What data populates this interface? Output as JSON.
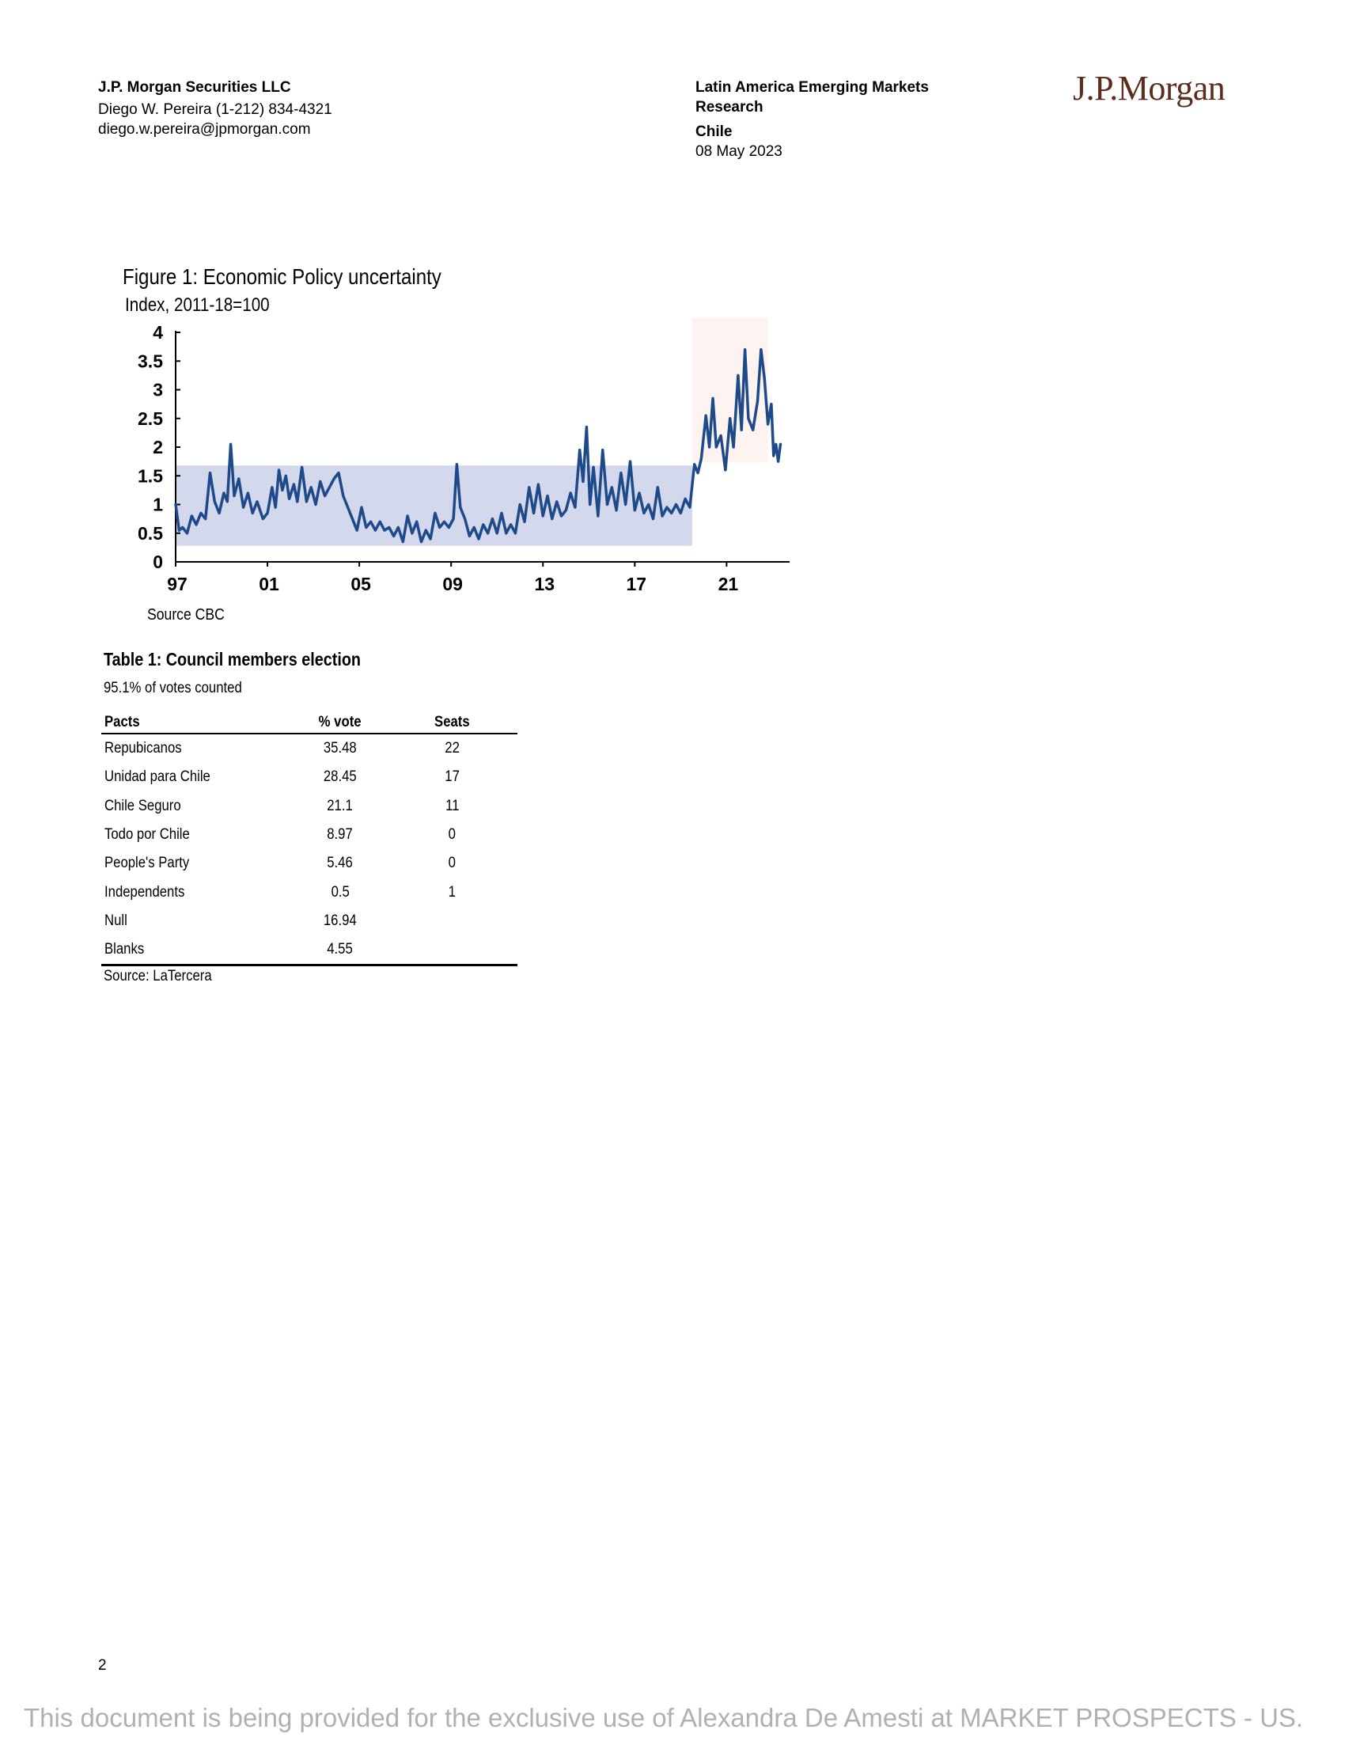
{
  "header": {
    "company": "J.P. Morgan Securities LLC",
    "analyst": "Diego W. Pereira (1-212) 834-4321",
    "email": "diego.w.pereira@jpmorgan.com",
    "research_line1": "Latin America Emerging Markets",
    "research_line2": "Research",
    "country": "Chile",
    "date": "08 May 2023",
    "logo": "J.P.Morgan"
  },
  "figure": {
    "title": "Figure 1: Economic Policy uncertainty",
    "subtitle": "Index,  2011-18=100",
    "source": "Source  CBC"
  },
  "chart_data": {
    "type": "line",
    "title": "Figure 1: Economic Policy uncertainty",
    "ylabel": "Index,  2011-18=100",
    "xlabel": "",
    "ylim": [
      0,
      4
    ],
    "xlim": [
      1997,
      2023.4
    ],
    "yticks": [
      "0",
      "0.5",
      "1",
      "1.5",
      "2",
      "2.5",
      "3",
      "3.5",
      "4"
    ],
    "xticks": [
      "97",
      "01",
      "05",
      "09",
      "13",
      "17",
      "21"
    ],
    "xtick_values": [
      1997,
      2001,
      2005,
      2009,
      2013,
      2017,
      2021
    ],
    "shaded_regions": [
      {
        "x": [
          1997,
          2019.5
        ],
        "y": [
          0.28,
          1.68
        ],
        "color": "#d3d8ec"
      },
      {
        "x": [
          2019.5,
          2022.8
        ],
        "y": [
          1.73,
          4.25
        ],
        "color": "#fdf4f2"
      }
    ],
    "series": [
      {
        "color": "#1f4a8a",
        "points": [
          [
            1997.0,
            1.0
          ],
          [
            1997.15,
            0.55
          ],
          [
            1997.3,
            0.6
          ],
          [
            1997.5,
            0.5
          ],
          [
            1997.7,
            0.8
          ],
          [
            1997.9,
            0.65
          ],
          [
            1998.1,
            0.85
          ],
          [
            1998.3,
            0.75
          ],
          [
            1998.5,
            1.55
          ],
          [
            1998.7,
            1.05
          ],
          [
            1998.9,
            0.85
          ],
          [
            1999.1,
            1.2
          ],
          [
            1999.25,
            1.05
          ],
          [
            1999.4,
            2.05
          ],
          [
            1999.55,
            1.15
          ],
          [
            1999.75,
            1.45
          ],
          [
            1999.95,
            0.95
          ],
          [
            2000.15,
            1.2
          ],
          [
            2000.35,
            0.85
          ],
          [
            2000.55,
            1.05
          ],
          [
            2000.8,
            0.75
          ],
          [
            2001.0,
            0.85
          ],
          [
            2001.2,
            1.3
          ],
          [
            2001.35,
            0.95
          ],
          [
            2001.5,
            1.6
          ],
          [
            2001.65,
            1.25
          ],
          [
            2001.8,
            1.5
          ],
          [
            2001.95,
            1.1
          ],
          [
            2002.15,
            1.35
          ],
          [
            2002.3,
            1.05
          ],
          [
            2002.5,
            1.65
          ],
          [
            2002.7,
            1.05
          ],
          [
            2002.9,
            1.3
          ],
          [
            2003.1,
            1.0
          ],
          [
            2003.3,
            1.4
          ],
          [
            2003.5,
            1.15
          ],
          [
            2003.7,
            1.3
          ],
          [
            2003.9,
            1.45
          ],
          [
            2004.1,
            1.55
          ],
          [
            2004.3,
            1.15
          ],
          [
            2004.5,
            0.95
          ],
          [
            2004.7,
            0.75
          ],
          [
            2004.9,
            0.55
          ],
          [
            2005.1,
            0.95
          ],
          [
            2005.3,
            0.6
          ],
          [
            2005.5,
            0.7
          ],
          [
            2005.7,
            0.55
          ],
          [
            2005.9,
            0.7
          ],
          [
            2006.1,
            0.55
          ],
          [
            2006.3,
            0.6
          ],
          [
            2006.5,
            0.45
          ],
          [
            2006.7,
            0.6
          ],
          [
            2006.9,
            0.35
          ],
          [
            2007.1,
            0.8
          ],
          [
            2007.3,
            0.5
          ],
          [
            2007.5,
            0.7
          ],
          [
            2007.7,
            0.35
          ],
          [
            2007.9,
            0.55
          ],
          [
            2008.1,
            0.4
          ],
          [
            2008.3,
            0.85
          ],
          [
            2008.5,
            0.6
          ],
          [
            2008.7,
            0.7
          ],
          [
            2008.9,
            0.6
          ],
          [
            2009.1,
            0.75
          ],
          [
            2009.25,
            1.7
          ],
          [
            2009.4,
            0.95
          ],
          [
            2009.6,
            0.75
          ],
          [
            2009.8,
            0.45
          ],
          [
            2010.0,
            0.6
          ],
          [
            2010.2,
            0.4
          ],
          [
            2010.4,
            0.65
          ],
          [
            2010.6,
            0.5
          ],
          [
            2010.8,
            0.75
          ],
          [
            2011.0,
            0.5
          ],
          [
            2011.2,
            0.85
          ],
          [
            2011.4,
            0.5
          ],
          [
            2011.6,
            0.65
          ],
          [
            2011.8,
            0.5
          ],
          [
            2012.0,
            1.0
          ],
          [
            2012.2,
            0.7
          ],
          [
            2012.4,
            1.3
          ],
          [
            2012.6,
            0.85
          ],
          [
            2012.8,
            1.35
          ],
          [
            2013.0,
            0.8
          ],
          [
            2013.2,
            1.15
          ],
          [
            2013.4,
            0.75
          ],
          [
            2013.6,
            1.05
          ],
          [
            2013.8,
            0.8
          ],
          [
            2014.0,
            0.9
          ],
          [
            2014.2,
            1.2
          ],
          [
            2014.4,
            0.95
          ],
          [
            2014.6,
            1.95
          ],
          [
            2014.75,
            1.4
          ],
          [
            2014.9,
            2.35
          ],
          [
            2015.05,
            1.0
          ],
          [
            2015.2,
            1.65
          ],
          [
            2015.4,
            0.8
          ],
          [
            2015.6,
            1.95
          ],
          [
            2015.8,
            1.0
          ],
          [
            2016.0,
            1.3
          ],
          [
            2016.2,
            0.9
          ],
          [
            2016.4,
            1.55
          ],
          [
            2016.6,
            1.0
          ],
          [
            2016.8,
            1.75
          ],
          [
            2017.0,
            0.9
          ],
          [
            2017.2,
            1.2
          ],
          [
            2017.4,
            0.85
          ],
          [
            2017.6,
            1.0
          ],
          [
            2017.8,
            0.75
          ],
          [
            2018.0,
            1.3
          ],
          [
            2018.2,
            0.8
          ],
          [
            2018.4,
            0.95
          ],
          [
            2018.6,
            0.85
          ],
          [
            2018.8,
            1.0
          ],
          [
            2019.0,
            0.85
          ],
          [
            2019.2,
            1.1
          ],
          [
            2019.4,
            0.95
          ],
          [
            2019.6,
            1.7
          ],
          [
            2019.75,
            1.55
          ],
          [
            2019.9,
            1.8
          ],
          [
            2020.1,
            2.55
          ],
          [
            2020.25,
            2.0
          ],
          [
            2020.4,
            2.85
          ],
          [
            2020.55,
            2.0
          ],
          [
            2020.75,
            2.2
          ],
          [
            2020.95,
            1.6
          ],
          [
            2021.15,
            2.5
          ],
          [
            2021.3,
            2.0
          ],
          [
            2021.5,
            3.25
          ],
          [
            2021.65,
            2.3
          ],
          [
            2021.8,
            3.7
          ],
          [
            2021.95,
            2.5
          ],
          [
            2022.15,
            2.3
          ],
          [
            2022.35,
            2.8
          ],
          [
            2022.5,
            3.7
          ],
          [
            2022.65,
            3.2
          ],
          [
            2022.8,
            2.4
          ],
          [
            2022.95,
            2.75
          ],
          [
            2023.05,
            1.85
          ],
          [
            2023.15,
            2.05
          ],
          [
            2023.25,
            1.75
          ],
          [
            2023.35,
            2.05
          ]
        ]
      }
    ]
  },
  "table": {
    "title": "Table 1: Council members  election",
    "subtitle": "95.1% of votes counted",
    "columns": [
      "Pacts",
      "% vote",
      "Seats"
    ],
    "rows": [
      [
        "Repubicanos",
        "35.48",
        "22"
      ],
      [
        "Unidad para Chile",
        "28.45",
        "17"
      ],
      [
        "Chile Seguro",
        "21.1",
        "11"
      ],
      [
        "Todo por Chile",
        "8.97",
        "0"
      ],
      [
        "People's Party",
        "5.46",
        "0"
      ],
      [
        "Independents",
        "0.5",
        "1"
      ],
      [
        "Null",
        "16.94",
        ""
      ],
      [
        "Blanks",
        "4.55",
        ""
      ]
    ],
    "source": "Source: LaTercera"
  },
  "page_number": "2",
  "footer": "This document is being provided for the exclusive use of Alexandra De Amesti at MARKET PROSPECTS - US."
}
